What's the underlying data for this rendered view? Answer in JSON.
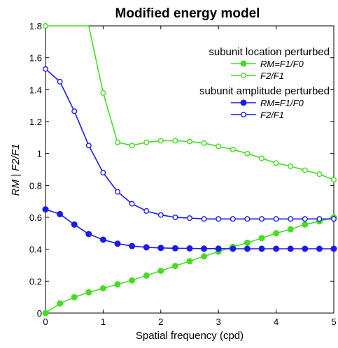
{
  "chart_data": {
    "type": "line",
    "title": "Modified energy model",
    "xlabel": "Spatial frequency (cpd)",
    "ylabel": "RM | F2/F1",
    "xlim": [
      0,
      5
    ],
    "ylim": [
      0,
      1.8
    ],
    "xticks": [
      0,
      1,
      2,
      3,
      4,
      5
    ],
    "yticks": [
      0,
      0.2,
      0.4,
      0.6,
      0.8,
      1,
      1.2,
      1.4,
      1.6,
      1.8
    ],
    "ytick_labels": [
      "0",
      "0.2",
      "0.4",
      "0.6",
      "0.8",
      "1",
      "1.2",
      "1.4",
      "1.6",
      "1.8"
    ],
    "grid": false,
    "legend_position": "top-right",
    "legend_groups": [
      {
        "title": "subunit location perturbed",
        "entries": [
          0,
          1
        ]
      },
      {
        "title": "subunit amplitude perturbed",
        "entries": [
          2,
          3
        ]
      }
    ],
    "series": [
      {
        "name": "RM=F1/F0",
        "color": "#44dd22",
        "marker": "filled",
        "x": [
          0,
          0.25,
          0.5,
          0.75,
          1,
          1.25,
          1.5,
          1.75,
          2,
          2.25,
          2.5,
          2.75,
          3,
          3.25,
          3.5,
          3.75,
          4,
          4.25,
          4.5,
          4.75,
          5
        ],
        "y": [
          0.0,
          0.06,
          0.1,
          0.13,
          0.155,
          0.18,
          0.205,
          0.235,
          0.265,
          0.295,
          0.325,
          0.355,
          0.385,
          0.415,
          0.44,
          0.47,
          0.5,
          0.525,
          0.555,
          0.575,
          0.6
        ]
      },
      {
        "name": "F2/F1",
        "color": "#44dd22",
        "marker": "open",
        "x": [
          0,
          0.75,
          1,
          1.25,
          1.5,
          1.75,
          2,
          2.25,
          2.5,
          2.75,
          3,
          3.25,
          3.5,
          3.75,
          4,
          4.25,
          4.5,
          4.75,
          5
        ],
        "y": [
          1.8,
          1.8,
          1.38,
          1.07,
          1.05,
          1.07,
          1.08,
          1.08,
          1.075,
          1.065,
          1.045,
          1.025,
          1.0,
          0.97,
          0.94,
          0.92,
          0.895,
          0.87,
          0.835
        ],
        "marker_mask": [
          1,
          0,
          1,
          1,
          1,
          1,
          1,
          1,
          1,
          1,
          1,
          1,
          1,
          1,
          1,
          1,
          1,
          1,
          1
        ]
      },
      {
        "name": "RM=F1/F0",
        "color": "#1a1aee",
        "marker": "filled",
        "x": [
          0,
          0.25,
          0.5,
          0.75,
          1,
          1.25,
          1.5,
          1.75,
          2,
          2.25,
          2.5,
          2.75,
          3,
          3.25,
          3.5,
          3.75,
          4,
          4.25,
          4.5,
          4.75,
          5
        ],
        "y": [
          0.65,
          0.62,
          0.555,
          0.495,
          0.46,
          0.435,
          0.42,
          0.412,
          0.408,
          0.406,
          0.405,
          0.404,
          0.404,
          0.403,
          0.403,
          0.403,
          0.403,
          0.403,
          0.403,
          0.403,
          0.403
        ]
      },
      {
        "name": "F2/F1",
        "color": "#1a1aee",
        "marker": "open",
        "x": [
          0,
          0.25,
          0.5,
          0.75,
          1,
          1.25,
          1.5,
          1.75,
          2,
          2.25,
          2.5,
          2.75,
          3,
          3.25,
          3.5,
          3.75,
          4,
          4.25,
          4.5,
          4.75,
          5
        ],
        "y": [
          1.53,
          1.45,
          1.265,
          1.05,
          0.88,
          0.76,
          0.685,
          0.64,
          0.615,
          0.6,
          0.595,
          0.59,
          0.59,
          0.59,
          0.59,
          0.59,
          0.59,
          0.59,
          0.59,
          0.59,
          0.59
        ]
      }
    ]
  }
}
